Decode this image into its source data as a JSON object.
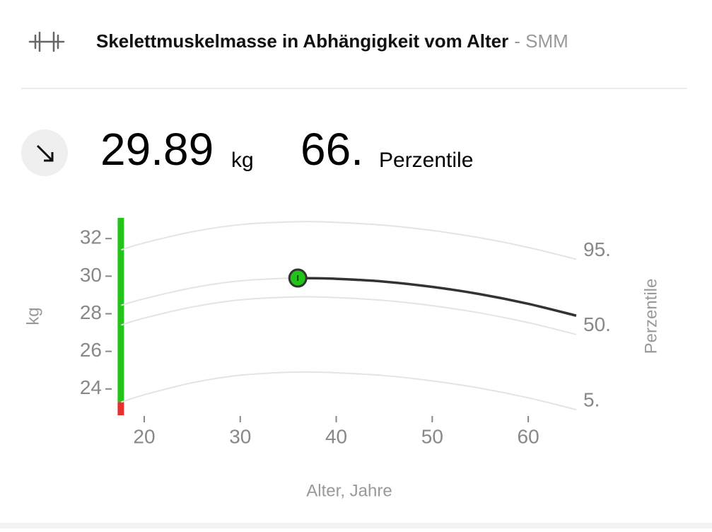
{
  "header": {
    "title": "Skelettmuskelmasse in Abhängigkeit vom Alter",
    "suffix": "- SMM"
  },
  "stats": {
    "value": "29.89",
    "unit": "kg",
    "percentile": "66.",
    "percentile_label": "Perzentile"
  },
  "chart_data": {
    "type": "line",
    "x_label": "Alter, Jahre",
    "y_label": "kg",
    "y2_label": "Perzentile",
    "xlim": [
      17.6,
      65
    ],
    "ylim": [
      22.6,
      33.1
    ],
    "xticks": [
      20,
      30,
      40,
      50,
      60
    ],
    "yticks": [
      24,
      26,
      28,
      30,
      32
    ],
    "x": [
      17.6,
      20,
      25,
      30,
      36,
      40,
      45,
      50,
      55,
      60,
      65
    ],
    "series": [
      {
        "label": "95.",
        "color": "#e4e4e4",
        "values": [
          31.4,
          31.77,
          32.36,
          32.74,
          32.9,
          32.86,
          32.71,
          32.43,
          32.04,
          31.53,
          30.9
        ]
      },
      {
        "color": "#e4e4e4",
        "values": [
          28.45,
          28.8,
          29.38,
          29.75,
          29.9,
          29.86,
          29.71,
          29.43,
          29.04,
          28.53,
          27.9
        ]
      },
      {
        "label": "50.",
        "color": "#e4e4e4",
        "values": [
          27.4,
          27.77,
          28.36,
          28.74,
          28.9,
          28.86,
          28.71,
          28.43,
          28.04,
          27.53,
          26.9
        ]
      },
      {
        "label": "5.",
        "color": "#e4e4e4",
        "values": [
          23.3,
          23.69,
          24.33,
          24.73,
          24.9,
          24.86,
          24.71,
          24.43,
          24.04,
          23.53,
          22.9
        ]
      },
      {
        "color": "#333333",
        "width": 3.5,
        "values": [
          null,
          null,
          null,
          null,
          29.9,
          29.86,
          29.71,
          29.43,
          29.04,
          28.53,
          27.9
        ]
      }
    ],
    "point": {
      "x": 36,
      "y": 29.9,
      "color": "#22c41a"
    },
    "bands": [
      {
        "from": 23.3,
        "to": 33.1,
        "color": "#22c41a"
      },
      {
        "from": 22.6,
        "to": 23.3,
        "color": "#e83030"
      }
    ]
  }
}
